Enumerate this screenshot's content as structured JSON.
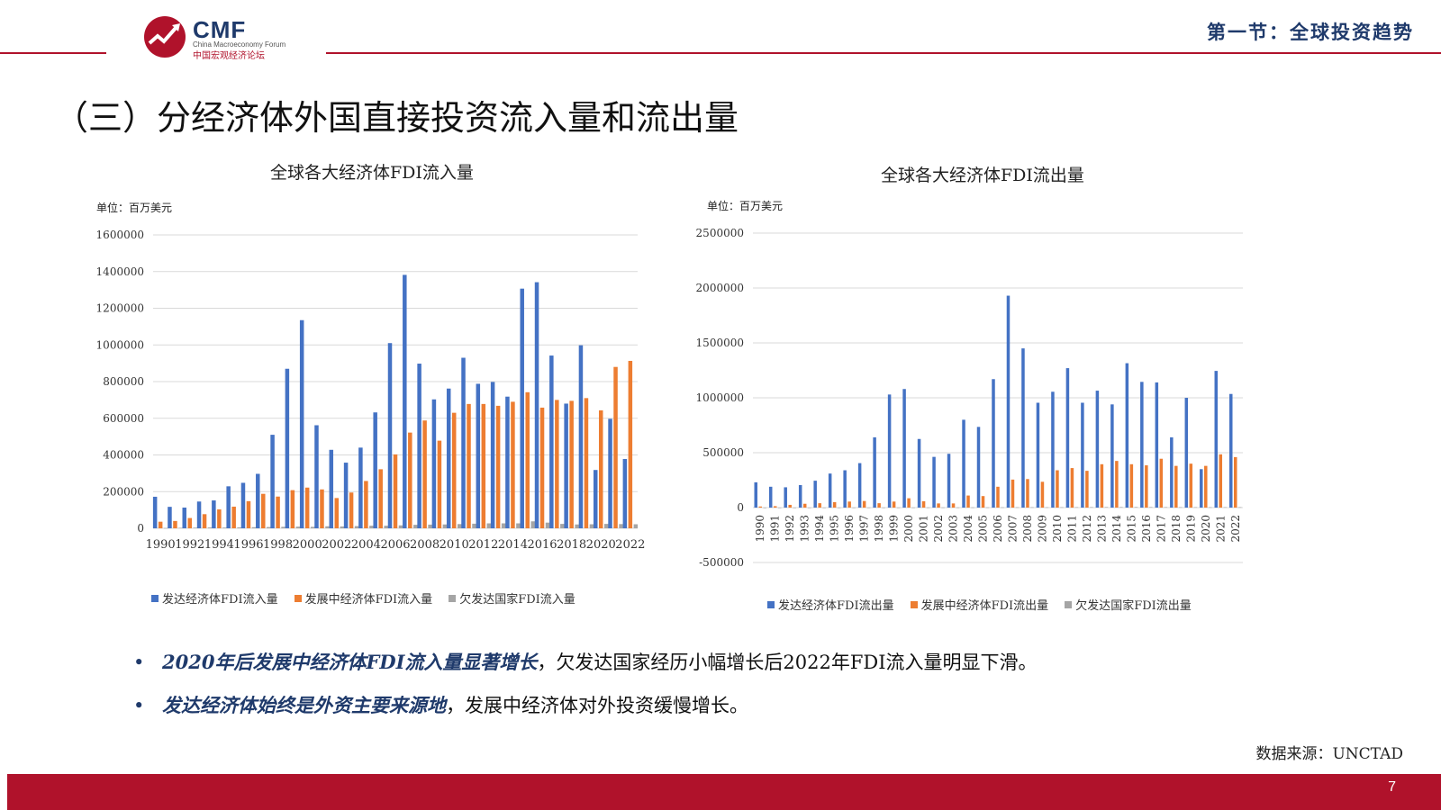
{
  "header": {
    "logo_text": "CMF",
    "logo_subtitle_en": "China Macroeconomy Forum",
    "logo_subtitle_cn": "中国宏观经济论坛",
    "section_title": "第一节：全球投资趋势"
  },
  "page_title": "（三）分经济体外国直接投资流入量和流出量",
  "colors": {
    "developed": "#4472C4",
    "developing": "#ED7D31",
    "least_developed": "#A5A5A5",
    "accent": "#B0122B",
    "navy": "#1F3A6B"
  },
  "chart_data": [
    {
      "type": "bar",
      "title": "全球各大经济体FDI流入量",
      "unit": "单位：百万美元",
      "ylim": [
        0,
        1600000
      ],
      "yticks": [
        "1600000",
        "1400000",
        "1200000",
        "1000000",
        "800000",
        "600000",
        "400000",
        "200000",
        "0"
      ],
      "categories": [
        "1990",
        "1991",
        "1992",
        "1993",
        "1994",
        "1995",
        "1996",
        "1997",
        "1998",
        "1999",
        "2000",
        "2001",
        "2002",
        "2003",
        "2004",
        "2005",
        "2006",
        "2007",
        "2008",
        "2009",
        "2010",
        "2011",
        "2012",
        "2013",
        "2014",
        "2015",
        "2016",
        "2017",
        "2018",
        "2019",
        "2020",
        "2021",
        "2022"
      ],
      "xtick_labels": [
        "1990",
        "1992",
        "1994",
        "1996",
        "1998",
        "2000",
        "2002",
        "2004",
        "2006",
        "2008",
        "2010",
        "2012",
        "2014",
        "2016",
        "2018",
        "2020",
        "2022"
      ],
      "legend_position": "bottom",
      "series": [
        {
          "name": "发达经济体FDI流入量",
          "values": [
            172000,
            117000,
            113000,
            146000,
            152000,
            229000,
            248000,
            297000,
            510000,
            870000,
            1135000,
            562000,
            428000,
            358000,
            440000,
            632000,
            1010000,
            1382000,
            898000,
            703000,
            762000,
            930000,
            788000,
            798000,
            718000,
            1307000,
            1342000,
            942000,
            680000,
            998000,
            318000,
            597000,
            378000
          ]
        },
        {
          "name": "发展中经济体FDI流入量",
          "values": [
            36000,
            40000,
            56000,
            77000,
            103000,
            118000,
            148000,
            188000,
            173000,
            208000,
            222000,
            212000,
            165000,
            195000,
            258000,
            322000,
            403000,
            522000,
            588000,
            478000,
            630000,
            678000,
            678000,
            668000,
            690000,
            742000,
            658000,
            700000,
            695000,
            710000,
            643000,
            880000,
            913000
          ]
        },
        {
          "name": "欠发达国家FDI流入量",
          "values": [
            1500,
            2500,
            3500,
            4500,
            4000,
            5000,
            6000,
            7000,
            8000,
            9000,
            8000,
            11000,
            10000,
            12000,
            14000,
            14000,
            16000,
            19000,
            20000,
            21000,
            23000,
            25000,
            27000,
            27000,
            27000,
            38000,
            31000,
            24000,
            21000,
            22000,
            24000,
            23000,
            22000
          ]
        }
      ]
    },
    {
      "type": "bar",
      "title": "全球各大经济体FDI流出量",
      "unit": "单位：百万美元",
      "ylim": [
        -500000,
        2500000
      ],
      "yticks": [
        "2500000",
        "2000000",
        "1500000",
        "1000000",
        "500000",
        "0",
        "-500000"
      ],
      "categories": [
        "1990",
        "1991",
        "1992",
        "1993",
        "1994",
        "1995",
        "1996",
        "1997",
        "1998",
        "1999",
        "2000",
        "2001",
        "2002",
        "2003",
        "2004",
        "2005",
        "2006",
        "2007",
        "2008",
        "2009",
        "2010",
        "2011",
        "2012",
        "2013",
        "2014",
        "2015",
        "2016",
        "2017",
        "2018",
        "2019",
        "2020",
        "2021",
        "2022"
      ],
      "legend_position": "bottom",
      "series": [
        {
          "name": "发达经济体FDI流出量",
          "values": [
            230000,
            190000,
            185000,
            205000,
            245000,
            310000,
            340000,
            405000,
            640000,
            1030000,
            1080000,
            625000,
            462000,
            490000,
            800000,
            735000,
            1170000,
            1930000,
            1450000,
            955000,
            1055000,
            1270000,
            955000,
            1065000,
            940000,
            1315000,
            1145000,
            1140000,
            640000,
            1000000,
            350000,
            1245000,
            1035000
          ]
        },
        {
          "name": "发展中经济体FDI流出量",
          "values": [
            10000,
            13000,
            25000,
            35000,
            40000,
            50000,
            55000,
            60000,
            40000,
            55000,
            85000,
            58000,
            38000,
            38000,
            110000,
            105000,
            190000,
            255000,
            260000,
            235000,
            340000,
            360000,
            335000,
            395000,
            425000,
            395000,
            385000,
            445000,
            380000,
            400000,
            380000,
            485000,
            460000
          ]
        },
        {
          "name": "欠发达国家FDI流出量",
          "values": [
            200,
            300,
            300,
            400,
            400,
            500,
            600,
            700,
            800,
            900,
            1000,
            1200,
            1400,
            1600,
            1800,
            2000,
            2500,
            3000,
            3500,
            3000,
            3500,
            4000,
            4500,
            5000,
            5000,
            5500,
            5000,
            4500,
            4000,
            4000,
            3500,
            4000,
            4000
          ]
        }
      ]
    }
  ],
  "bullets": [
    {
      "highlight": "2020年后发展中经济体FDI流入量显著增长",
      "rest": "，欠发达国家经历小幅增长后2022年FDI流入量明显下滑。"
    },
    {
      "highlight": "发达经济体始终是外资主要来源地",
      "rest": "，发展中经济体对外投资缓慢增长。"
    }
  ],
  "bullet_marker": "•",
  "source": "数据来源：UNCTAD",
  "page_number": "7"
}
